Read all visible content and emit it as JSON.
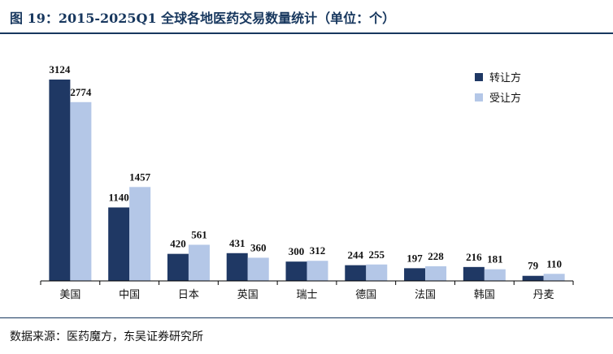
{
  "figure": {
    "title": "图 19：2015-2025Q1 全球各地医药交易数量统计（单位：个）",
    "source": "数据来源：医药魔方，东吴证券研究所"
  },
  "colors": {
    "series_1": "#1f3864",
    "series_2": "#b4c7e7",
    "rule": "#17375e"
  },
  "chart_data": {
    "type": "bar",
    "title": "",
    "xlabel": "",
    "ylabel": "",
    "categories": [
      "美国",
      "中国",
      "日本",
      "英国",
      "瑞士",
      "德国",
      "法国",
      "韩国",
      "丹麦"
    ],
    "series": [
      {
        "name": "转让方",
        "values": [
          3124,
          1140,
          420,
          431,
          300,
          244,
          197,
          216,
          79
        ]
      },
      {
        "name": "受让方",
        "values": [
          2774,
          1457,
          561,
          360,
          312,
          255,
          228,
          181,
          110
        ]
      }
    ],
    "ylim": [
      0,
      3300
    ],
    "grid": false,
    "legend": "top-right",
    "data_labels": true
  }
}
